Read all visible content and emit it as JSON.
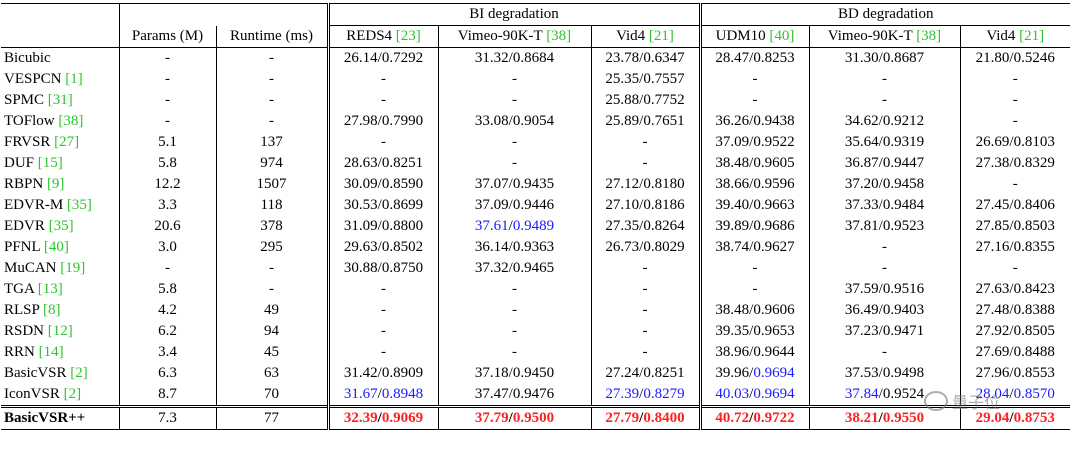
{
  "header": {
    "params": "Params (M)",
    "runtime": "Runtime (ms)",
    "bi_group": "BI degradation",
    "bd_group": "BD degradation",
    "bi_cols": [
      {
        "name": "REDS4 ",
        "cite": "[23]"
      },
      {
        "name": "Vimeo-90K-T ",
        "cite": "[38]"
      },
      {
        "name": "Vid4 ",
        "cite": "[21]"
      }
    ],
    "bd_cols": [
      {
        "name": "UDM10 ",
        "cite": "[40]"
      },
      {
        "name": "Vimeo-90K-T ",
        "cite": "[38]"
      },
      {
        "name": "Vid4 ",
        "cite": "[21]"
      }
    ]
  },
  "rows": [
    {
      "method": "Bicubic",
      "cite": "",
      "params": "-",
      "runtime": "-",
      "cells": [
        [
          "26.14",
          "0.7292"
        ],
        [
          "31.32",
          "0.8684"
        ],
        [
          "23.78",
          "0.6347"
        ],
        [
          "28.47",
          "0.8253"
        ],
        [
          "31.30",
          "0.8687"
        ],
        [
          "21.80",
          "0.5246"
        ]
      ]
    },
    {
      "method": "VESPCN ",
      "cite": "[1]",
      "params": "-",
      "runtime": "-",
      "cells": [
        [
          "-"
        ],
        [
          "-"
        ],
        [
          "25.35",
          "0.7557"
        ],
        [
          "-"
        ],
        [
          "-"
        ],
        [
          "-"
        ]
      ]
    },
    {
      "method": "SPMC ",
      "cite": "[31]",
      "params": "-",
      "runtime": "-",
      "cells": [
        [
          "-"
        ],
        [
          "-"
        ],
        [
          "25.88",
          "0.7752"
        ],
        [
          "-"
        ],
        [
          "-"
        ],
        [
          "-"
        ]
      ]
    },
    {
      "method": "TOFlow ",
      "cite": "[38]",
      "params": "-",
      "runtime": "-",
      "cells": [
        [
          "27.98",
          "0.7990"
        ],
        [
          "33.08",
          "0.9054"
        ],
        [
          "25.89",
          "0.7651"
        ],
        [
          "36.26",
          "0.9438"
        ],
        [
          "34.62",
          "0.9212"
        ],
        [
          "-"
        ]
      ]
    },
    {
      "method": "FRVSR ",
      "cite": "[27]",
      "params": "5.1",
      "runtime": "137",
      "cells": [
        [
          "-"
        ],
        [
          "-"
        ],
        [
          "-"
        ],
        [
          "37.09",
          "0.9522"
        ],
        [
          "35.64",
          "0.9319"
        ],
        [
          "26.69",
          "0.8103"
        ]
      ]
    },
    {
      "method": "DUF ",
      "cite": "[15]",
      "params": "5.8",
      "runtime": "974",
      "cells": [
        [
          "28.63",
          "0.8251"
        ],
        [
          "-"
        ],
        [
          "-"
        ],
        [
          "38.48",
          "0.9605"
        ],
        [
          "36.87",
          "0.9447"
        ],
        [
          "27.38",
          "0.8329"
        ]
      ]
    },
    {
      "method": "RBPN ",
      "cite": "[9]",
      "params": "12.2",
      "runtime": "1507",
      "cells": [
        [
          "30.09",
          "0.8590"
        ],
        [
          "37.07",
          "0.9435"
        ],
        [
          "27.12",
          "0.8180"
        ],
        [
          "38.66",
          "0.9596"
        ],
        [
          "37.20",
          "0.9458"
        ],
        [
          "-"
        ]
      ]
    },
    {
      "method": "EDVR-M ",
      "cite": "[35]",
      "params": "3.3",
      "runtime": "118",
      "cells": [
        [
          "30.53",
          "0.8699"
        ],
        [
          "37.09",
          "0.9446"
        ],
        [
          "27.10",
          "0.8186"
        ],
        [
          "39.40",
          "0.9663"
        ],
        [
          "37.33",
          "0.9484"
        ],
        [
          "27.45",
          "0.8406"
        ]
      ]
    },
    {
      "method": "EDVR ",
      "cite": "[35]",
      "params": "20.6",
      "runtime": "378",
      "cells": [
        [
          "31.09",
          "0.8800"
        ],
        [
          "37.61",
          "0.9489",
          "blue",
          "blue"
        ],
        [
          "27.35",
          "0.8264"
        ],
        [
          "39.89",
          "0.9686"
        ],
        [
          "37.81",
          "0.9523"
        ],
        [
          "27.85",
          "0.8503"
        ]
      ]
    },
    {
      "method": "PFNL ",
      "cite": "[40]",
      "params": "3.0",
      "runtime": "295",
      "cells": [
        [
          "29.63",
          "0.8502"
        ],
        [
          "36.14",
          "0.9363"
        ],
        [
          "26.73",
          "0.8029"
        ],
        [
          "38.74",
          "0.9627"
        ],
        [
          "-"
        ],
        [
          "27.16",
          "0.8355"
        ]
      ]
    },
    {
      "method": "MuCAN ",
      "cite": "[19]",
      "params": "-",
      "runtime": "-",
      "cells": [
        [
          "30.88",
          "0.8750"
        ],
        [
          "37.32",
          "0.9465"
        ],
        [
          "-"
        ],
        [
          "-"
        ],
        [
          "-"
        ],
        [
          "-"
        ]
      ]
    },
    {
      "method": "TGA ",
      "cite": "[13]",
      "params": "5.8",
      "runtime": "-",
      "cells": [
        [
          "-"
        ],
        [
          "-"
        ],
        [
          "-"
        ],
        [
          "-"
        ],
        [
          "37.59",
          "0.9516"
        ],
        [
          "27.63",
          "0.8423"
        ]
      ]
    },
    {
      "method": "RLSP ",
      "cite": "[8]",
      "params": "4.2",
      "runtime": "49",
      "cells": [
        [
          "-"
        ],
        [
          "-"
        ],
        [
          "-"
        ],
        [
          "38.48",
          "0.9606"
        ],
        [
          "36.49",
          "0.9403"
        ],
        [
          "27.48",
          "0.8388"
        ]
      ]
    },
    {
      "method": "RSDN ",
      "cite": "[12]",
      "params": "6.2",
      "runtime": "94",
      "cells": [
        [
          "-"
        ],
        [
          "-"
        ],
        [
          "-"
        ],
        [
          "39.35",
          "0.9653"
        ],
        [
          "37.23",
          "0.9471"
        ],
        [
          "27.92",
          "0.8505"
        ]
      ]
    },
    {
      "method": "RRN ",
      "cite": "[14]",
      "params": "3.4",
      "runtime": "45",
      "cells": [
        [
          "-"
        ],
        [
          "-"
        ],
        [
          "-"
        ],
        [
          "38.96",
          "0.9644"
        ],
        [
          "-"
        ],
        [
          "27.69",
          "0.8488"
        ]
      ]
    },
    {
      "method": "BasicVSR ",
      "cite": "[2]",
      "params": "6.3",
      "runtime": "63",
      "cells": [
        [
          "31.42",
          "0.8909"
        ],
        [
          "37.18",
          "0.9450"
        ],
        [
          "27.24",
          "0.8251"
        ],
        [
          "39.96",
          "0.9694",
          "",
          "blue"
        ],
        [
          "37.53",
          "0.9498"
        ],
        [
          "27.96",
          "0.8553"
        ]
      ]
    },
    {
      "method": "IconVSR ",
      "cite": "[2]",
      "params": "8.7",
      "runtime": "70",
      "cells": [
        [
          "31.67",
          "0.8948",
          "blue",
          "blue"
        ],
        [
          "37.47",
          "0.9476"
        ],
        [
          "27.39",
          "0.8279",
          "blue",
          "blue"
        ],
        [
          "40.03",
          "0.9694",
          "blue",
          "blue"
        ],
        [
          "37.84",
          "0.9524",
          "blue",
          ""
        ],
        [
          "28.04",
          "0.8570",
          "blue",
          "blue"
        ]
      ]
    },
    {
      "method": "BasicVSR++",
      "cite": "",
      "bold": true,
      "params": "7.3",
      "runtime": "77",
      "cells": [
        [
          "32.39",
          "0.9069",
          "red",
          "red"
        ],
        [
          "37.79",
          "0.9500",
          "red",
          "red"
        ],
        [
          "27.79",
          "0.8400",
          "red",
          "red"
        ],
        [
          "40.72",
          "0.9722",
          "red",
          "red"
        ],
        [
          "38.21",
          "0.9550",
          "red",
          "red"
        ],
        [
          "29.04",
          "0.8753",
          "red",
          "red"
        ]
      ]
    }
  ],
  "watermark": "量子位"
}
